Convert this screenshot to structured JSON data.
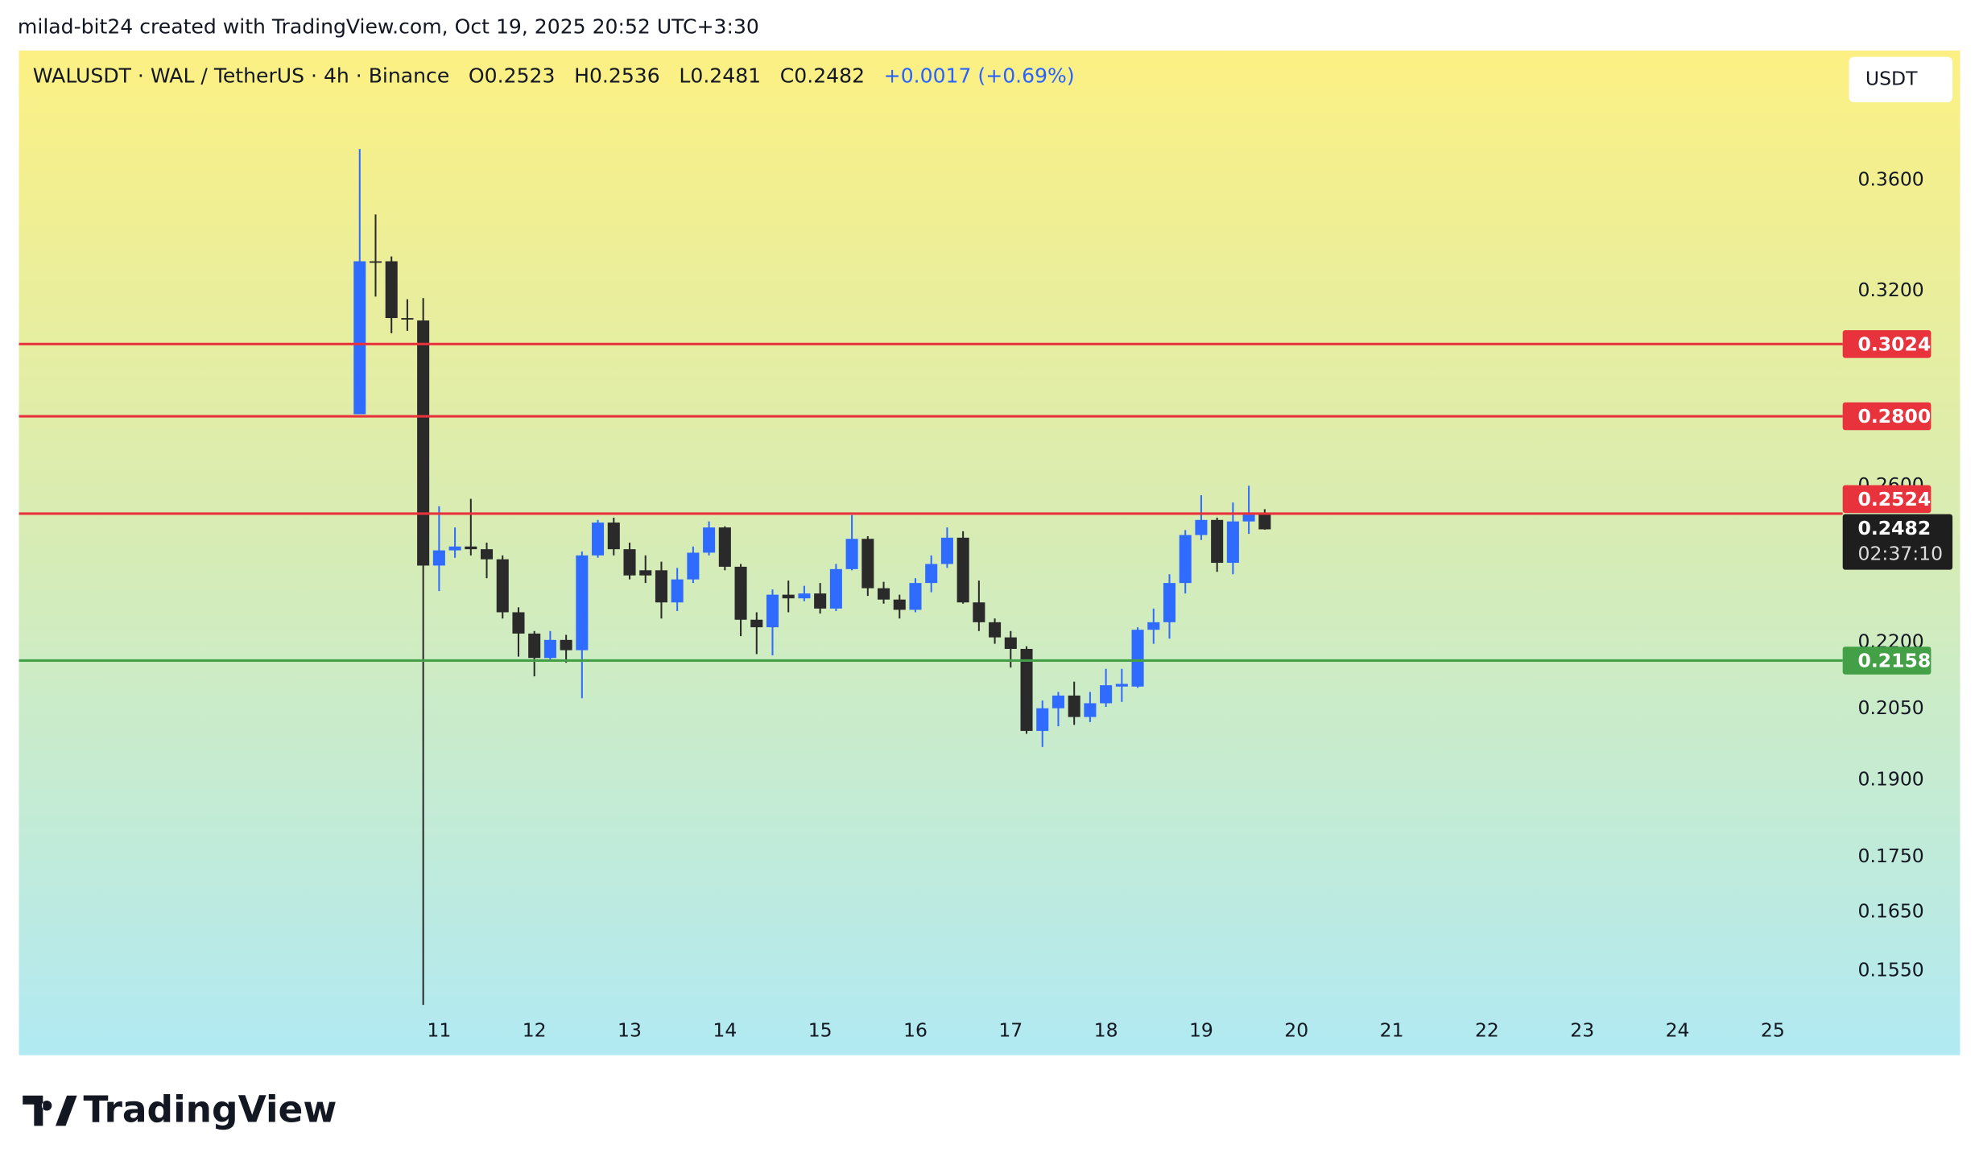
{
  "header": {
    "attribution": "milad-bit24 created with TradingView.com, Oct 19, 2025 20:52 UTC+3:30"
  },
  "legend": {
    "symbol": "WALUSDT · WAL / TetherUS · 4h · Binance",
    "labels": [
      "O",
      "H",
      "L",
      "C"
    ],
    "change": "+0.0017 (+0.69%)"
  },
  "currency_button": "USDT",
  "countdown": "02:37:10",
  "footer": {
    "logo": "TradingView"
  },
  "chart_data": {
    "type": "candlestick",
    "log_scale": true,
    "up_color": "#2f6bff",
    "down_color": "#2a2a2a",
    "categories": [
      null,
      null,
      null,
      null,
      null,
      "11",
      null,
      null,
      null,
      null,
      null,
      "12",
      null,
      null,
      null,
      null,
      null,
      "13",
      null,
      null,
      null,
      null,
      null,
      "14",
      null,
      null,
      null,
      null,
      null,
      "15",
      null,
      null,
      null,
      null,
      null,
      "16",
      null,
      null,
      null,
      null,
      null,
      "17",
      null,
      null,
      null,
      null,
      null,
      "18",
      null,
      null,
      null,
      null,
      null,
      "19",
      null,
      null,
      null,
      null,
      null,
      "20",
      null,
      null,
      null,
      null,
      null,
      "21",
      null,
      null,
      null,
      null,
      null,
      "22",
      null,
      null,
      null,
      null,
      null,
      "23",
      null,
      null,
      null,
      null,
      null,
      "24",
      null,
      null,
      null,
      null,
      null,
      "25"
    ],
    "open": [
      0.2806,
      0.3303,
      0.3303,
      0.3109,
      0.3101,
      0.2388,
      0.2427,
      0.2437,
      0.243,
      0.2404,
      0.2272,
      0.2221,
      0.2164,
      0.2206,
      0.2182,
      0.2414,
      0.25,
      0.243,
      0.2376,
      0.2376,
      0.2296,
      0.2353,
      0.2421,
      0.2487,
      0.2385,
      0.2254,
      0.2236,
      0.2315,
      0.2306,
      0.2318,
      0.2281,
      0.2379,
      0.2457,
      0.2331,
      0.2303,
      0.2278,
      0.2344,
      0.2392,
      0.246,
      0.2296,
      0.2248,
      0.2212,
      0.2185,
      0.2002,
      0.2051,
      0.2079,
      0.2032,
      0.2062,
      0.2099,
      0.2099,
      0.223,
      0.2248,
      0.2344,
      0.2467,
      0.2507,
      0.2395,
      0.2503,
      0.2523,
      null,
      null,
      null,
      null,
      null,
      null,
      null,
      null,
      null,
      null,
      null,
      null,
      null,
      null,
      null,
      null,
      null,
      null,
      null,
      null,
      null,
      null,
      null,
      null,
      null,
      null,
      null,
      null,
      null,
      null,
      null,
      null
    ],
    "high": [
      0.3723,
      0.3472,
      0.332,
      0.3172,
      0.3176,
      0.2544,
      0.2487,
      0.2564,
      0.2447,
      0.2414,
      0.2284,
      0.2227,
      0.2227,
      0.2218,
      0.2424,
      0.2507,
      0.2513,
      0.2447,
      0.2414,
      0.2398,
      0.2382,
      0.2437,
      0.2503,
      0.249,
      0.2392,
      0.2272,
      0.2328,
      0.235,
      0.2337,
      0.2344,
      0.2392,
      0.252,
      0.2464,
      0.2347,
      0.2315,
      0.2356,
      0.2414,
      0.2487,
      0.2477,
      0.235,
      0.2257,
      0.2227,
      0.2191,
      0.2068,
      0.2087,
      0.211,
      0.2087,
      0.2139,
      0.2139,
      0.2236,
      0.2281,
      0.2366,
      0.248,
      0.2574,
      0.2513,
      0.2554,
      0.26,
      0.2536,
      null,
      null,
      null,
      null,
      null,
      null,
      null,
      null,
      null,
      null,
      null,
      null,
      null,
      null,
      null,
      null,
      null,
      null,
      null,
      null,
      null,
      null,
      null,
      null,
      null,
      null,
      null,
      null,
      null,
      null,
      null,
      null
    ],
    "low": [
      0.2806,
      0.3181,
      0.3059,
      0.3067,
      0.1495,
      0.2324,
      0.2408,
      0.2414,
      0.2356,
      0.2257,
      0.2167,
      0.2122,
      0.2159,
      0.2153,
      0.2073,
      0.2408,
      0.2414,
      0.2353,
      0.2344,
      0.2257,
      0.2275,
      0.2344,
      0.2414,
      0.2376,
      0.2215,
      0.2173,
      0.217,
      0.2272,
      0.2299,
      0.2269,
      0.2275,
      0.2376,
      0.2312,
      0.2293,
      0.2257,
      0.2272,
      0.2321,
      0.2382,
      0.2293,
      0.2227,
      0.2197,
      0.2142,
      0.1996,
      0.1968,
      0.2012,
      0.2015,
      0.2021,
      0.2054,
      0.2065,
      0.2096,
      0.2197,
      0.2209,
      0.2318,
      0.2454,
      0.2372,
      0.2366,
      0.247,
      0.2481,
      null,
      null,
      null,
      null,
      null,
      null,
      null,
      null,
      null,
      null,
      null,
      null,
      null,
      null,
      null,
      null,
      null,
      null,
      null,
      null,
      null,
      null,
      null,
      null,
      null,
      null,
      null,
      null,
      null,
      null,
      null,
      null
    ],
    "close": [
      0.3303,
      0.3298,
      0.3109,
      0.3105,
      0.2388,
      0.2427,
      0.2437,
      0.243,
      0.2404,
      0.2272,
      0.2221,
      0.2164,
      0.2206,
      0.2182,
      0.2414,
      0.25,
      0.243,
      0.2363,
      0.2363,
      0.2296,
      0.2353,
      0.2421,
      0.2487,
      0.2385,
      0.2254,
      0.2236,
      0.2315,
      0.2306,
      0.2318,
      0.2281,
      0.2379,
      0.2457,
      0.2331,
      0.2303,
      0.2278,
      0.2344,
      0.2392,
      0.246,
      0.2296,
      0.2248,
      0.2212,
      0.2185,
      0.2002,
      0.2051,
      0.2079,
      0.2032,
      0.2062,
      0.2102,
      0.2105,
      0.223,
      0.2248,
      0.2344,
      0.2467,
      0.2507,
      0.2395,
      0.2503,
      0.2527,
      0.2482,
      null,
      null,
      null,
      null,
      null,
      null,
      null,
      null,
      null,
      null,
      null,
      null,
      null,
      null,
      null,
      null,
      null,
      null,
      null,
      null,
      null,
      null,
      null,
      null,
      null,
      null,
      null,
      null,
      null,
      null,
      null,
      null
    ],
    "ylim": [
      0.1417,
      0.4135
    ],
    "yticks": [
      {
        "value": 0.36,
        "label": "0.3600"
      },
      {
        "value": 0.32,
        "label": "0.3200"
      },
      {
        "value": 0.26,
        "label": "0.2600"
      },
      {
        "value": 0.22,
        "label": "0.2200"
      },
      {
        "value": 0.205,
        "label": "0.2050"
      },
      {
        "value": 0.19,
        "label": "0.1900"
      },
      {
        "value": 0.175,
        "label": "0.1750"
      },
      {
        "value": 0.165,
        "label": "0.1650"
      },
      {
        "value": 0.155,
        "label": "0.1550"
      }
    ],
    "levels": [
      {
        "value": 0.3024,
        "label": "0.3024",
        "color": "#e8323c"
      },
      {
        "value": 0.28,
        "label": "0.2800",
        "color": "#e8323c"
      },
      {
        "value": 0.2524,
        "label": "0.2524",
        "color": "#e8323c"
      },
      {
        "value": 0.2158,
        "label": "0.2158",
        "color": "#43a047"
      }
    ]
  }
}
